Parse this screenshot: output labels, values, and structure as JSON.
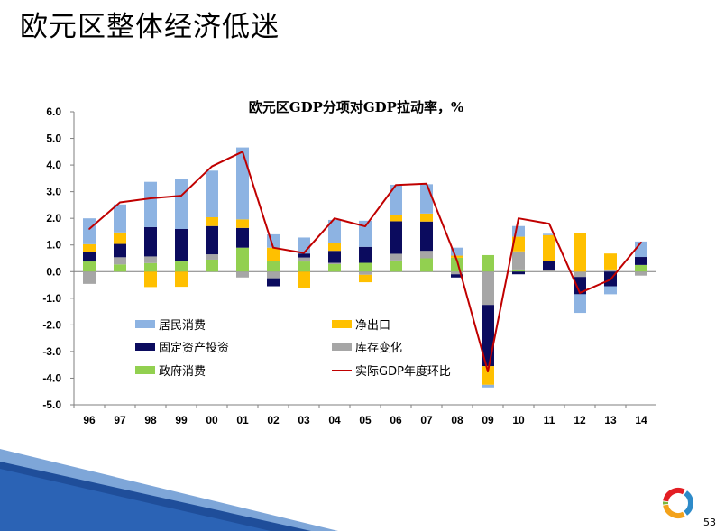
{
  "slide": {
    "title": "欧元区整体经济低迷",
    "page_number": "53"
  },
  "colors": {
    "居民消费": "#8db3e2",
    "净出口": "#ffc000",
    "固定资产投资": "#0b0b5e",
    "库存变化": "#a6a6a6",
    "政府消费": "#92d050",
    "实际GDP年度环比": "#c00000"
  },
  "chart_data": {
    "type": "bar",
    "stacked": true,
    "title": "欧元区GDP分项对GDP拉动率，%",
    "categories": [
      "96",
      "97",
      "98",
      "99",
      "00",
      "01",
      "02",
      "03",
      "04",
      "05",
      "06",
      "07",
      "08",
      "09",
      "10",
      "11",
      "12",
      "13",
      "14"
    ],
    "ylim": [
      -5.0,
      6.0
    ],
    "yticks": [
      "6.0",
      "5.0",
      "4.0",
      "3.0",
      "2.0",
      "1.0",
      "0.0",
      "-1.0",
      "-2.0",
      "-3.0",
      "-4.0",
      "-5.0"
    ],
    "grid": false,
    "legend_position": "bottom-left inside plot",
    "series": [
      {
        "name": "居民消费",
        "values": [
          0.97,
          1.05,
          1.7,
          1.87,
          1.75,
          2.7,
          0.5,
          0.6,
          0.86,
          0.98,
          1.12,
          1.1,
          0.3,
          -0.1,
          0.4,
          0.05,
          -0.7,
          -0.3,
          0.58
        ]
      },
      {
        "name": "净出口",
        "values": [
          0.3,
          0.43,
          -0.58,
          -0.57,
          0.33,
          0.32,
          0.5,
          -0.63,
          0.3,
          -0.28,
          0.25,
          0.3,
          0.08,
          -0.7,
          0.55,
          0.97,
          1.45,
          0.6,
          0.0
        ]
      },
      {
        "name": "固定资产投资",
        "values": [
          0.35,
          0.5,
          1.1,
          1.2,
          1.06,
          0.74,
          -0.3,
          0.15,
          0.45,
          0.6,
          1.22,
          1.1,
          -0.12,
          -2.3,
          -0.1,
          0.35,
          -0.65,
          -0.55,
          0.3
        ]
      },
      {
        "name": "库存变化",
        "values": [
          -0.46,
          0.27,
          0.25,
          0.02,
          0.2,
          -0.22,
          -0.25,
          0.15,
          0.05,
          -0.12,
          0.25,
          0.28,
          -0.1,
          -1.25,
          0.68,
          0.05,
          -0.2,
          0.08,
          -0.15
        ]
      },
      {
        "name": "政府消费",
        "values": [
          0.38,
          0.27,
          0.32,
          0.38,
          0.45,
          0.9,
          0.4,
          0.38,
          0.28,
          0.33,
          0.42,
          0.5,
          0.52,
          0.62,
          0.08,
          0.0,
          0.0,
          0.0,
          0.25
        ]
      },
      {
        "name": "实际GDP年度环比",
        "type": "line",
        "values": [
          1.6,
          2.6,
          2.75,
          2.85,
          3.95,
          4.5,
          0.9,
          0.7,
          2.0,
          1.7,
          3.25,
          3.3,
          0.4,
          -3.75,
          2.0,
          1.8,
          -0.8,
          -0.3,
          1.1
        ]
      }
    ]
  }
}
